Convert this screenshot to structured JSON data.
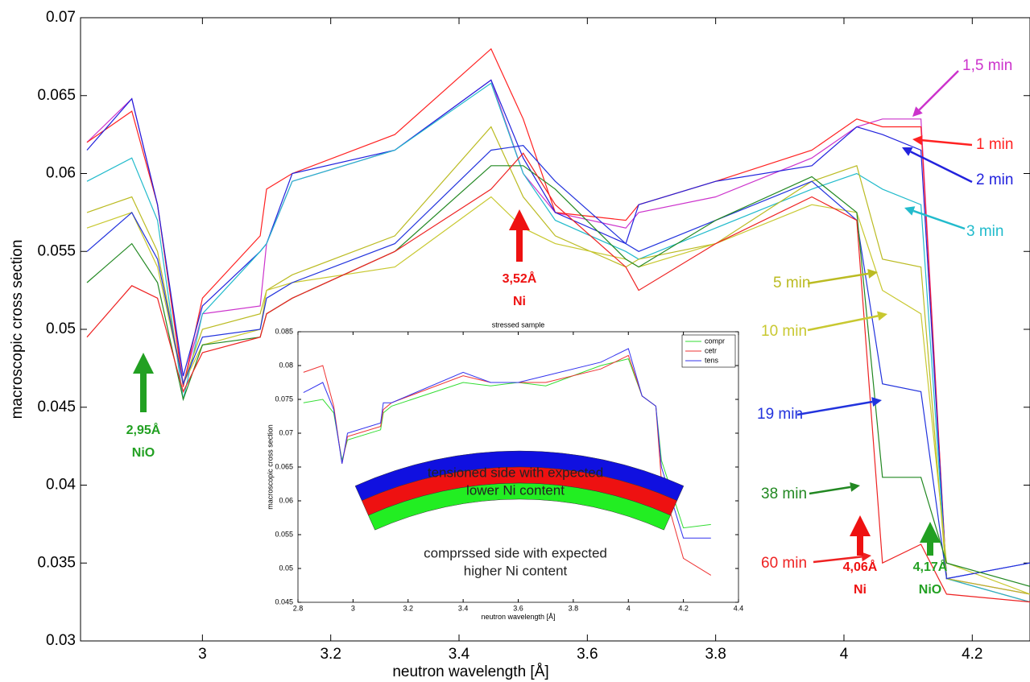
{
  "chart_data": [
    {
      "type": "line",
      "xlabel": "neutron wavelength [Å]",
      "ylabel": "macroscopic cross section",
      "xlim": [
        2.81,
        4.29
      ],
      "ylim": [
        0.03,
        0.07
      ],
      "xticks": [
        3,
        3.2,
        3.4,
        3.6,
        3.8,
        4,
        4.2
      ],
      "yticks": [
        0.03,
        0.035,
        0.04,
        0.045,
        0.05,
        0.055,
        0.06,
        0.065,
        0.07
      ],
      "x": [
        2.82,
        2.89,
        2.93,
        2.97,
        3.0,
        3.09,
        3.1,
        3.14,
        3.3,
        3.45,
        3.5,
        3.55,
        3.66,
        3.68,
        3.8,
        3.95,
        4.02,
        4.06,
        4.12,
        4.16,
        4.29
      ],
      "series": [
        {
          "name": "1,5 min",
          "color": "#cc33cc",
          "values": [
            0.062,
            0.0648,
            0.058,
            0.0465,
            0.051,
            0.0515,
            0.0555,
            0.0595,
            0.0615,
            0.066,
            0.06,
            0.0575,
            0.0565,
            0.0575,
            0.0585,
            0.061,
            0.063,
            0.0635,
            0.0635,
            0.034,
            0.033
          ]
        },
        {
          "name": "1 min",
          "color": "#ff2222",
          "values": [
            0.062,
            0.064,
            0.058,
            0.0463,
            0.052,
            0.056,
            0.059,
            0.06,
            0.0625,
            0.068,
            0.0635,
            0.0575,
            0.057,
            0.058,
            0.0595,
            0.0615,
            0.0635,
            0.063,
            0.063,
            0.034,
            0.0325
          ]
        },
        {
          "name": "2 min",
          "color": "#2222dd",
          "values": [
            0.0615,
            0.0648,
            0.058,
            0.047,
            0.0515,
            0.055,
            0.0555,
            0.06,
            0.0615,
            0.066,
            0.061,
            0.0575,
            0.0555,
            0.058,
            0.0595,
            0.0605,
            0.063,
            0.0625,
            0.0615,
            0.034,
            0.035
          ]
        },
        {
          "name": "3 min",
          "color": "#22bbcc",
          "values": [
            0.0595,
            0.061,
            0.057,
            0.0455,
            0.051,
            0.055,
            0.0555,
            0.0595,
            0.0615,
            0.0658,
            0.06,
            0.057,
            0.055,
            0.0545,
            0.0565,
            0.059,
            0.06,
            0.059,
            0.058,
            0.034,
            0.0325
          ]
        },
        {
          "name": "5 min",
          "color": "#bbbb22",
          "values": [
            0.0575,
            0.0585,
            0.055,
            0.0465,
            0.05,
            0.051,
            0.0525,
            0.0535,
            0.056,
            0.063,
            0.0585,
            0.056,
            0.054,
            0.0545,
            0.0555,
            0.0595,
            0.0605,
            0.0545,
            0.054,
            0.034,
            0.033
          ]
        },
        {
          "name": "10 min",
          "color": "#c8c830",
          "values": [
            0.0565,
            0.0575,
            0.054,
            0.0465,
            0.049,
            0.05,
            0.0525,
            0.053,
            0.054,
            0.0585,
            0.0565,
            0.0555,
            0.0545,
            0.054,
            0.0555,
            0.058,
            0.0575,
            0.0525,
            0.051,
            0.035,
            0.033
          ]
        },
        {
          "name": "19 min",
          "color": "#2233dd",
          "values": [
            0.055,
            0.0575,
            0.0545,
            0.0465,
            0.0495,
            0.05,
            0.052,
            0.053,
            0.0555,
            0.0615,
            0.0618,
            0.0595,
            0.0555,
            0.055,
            0.057,
            0.0595,
            0.057,
            0.0465,
            0.046,
            0.034,
            0.035
          ]
        },
        {
          "name": "38 min",
          "color": "#228822",
          "values": [
            0.053,
            0.0555,
            0.053,
            0.0455,
            0.049,
            0.0495,
            0.051,
            0.052,
            0.055,
            0.0605,
            0.0605,
            0.059,
            0.0545,
            0.054,
            0.057,
            0.0598,
            0.0575,
            0.0405,
            0.0405,
            0.035,
            0.0335
          ]
        },
        {
          "name": "60 min",
          "color": "#ee2222",
          "values": [
            0.0495,
            0.0528,
            0.052,
            0.046,
            0.0485,
            0.0495,
            0.051,
            0.052,
            0.055,
            0.059,
            0.0613,
            0.058,
            0.054,
            0.0525,
            0.0555,
            0.0585,
            0.057,
            0.035,
            0.0362,
            0.033,
            0.0325
          ]
        }
      ],
      "annotations": [
        {
          "lines": [
            "3,52Å",
            "Ni"
          ],
          "color": "#ee1111"
        },
        {
          "lines": [
            "2,95Å",
            "NiO"
          ],
          "color": "#22a022"
        },
        {
          "lines": [
            "4,06Å",
            "Ni"
          ],
          "color": "#ee1111"
        },
        {
          "lines": [
            "4,17Å",
            "NiO"
          ],
          "color": "#22a022"
        }
      ]
    },
    {
      "type": "line",
      "title": "stressed sample",
      "xlabel": "neutron wavelength [Å]",
      "ylabel": "macroscopic cross section",
      "xlim": [
        2.8,
        4.4
      ],
      "ylim": [
        0.045,
        0.085
      ],
      "xticks": [
        2.8,
        3,
        3.2,
        3.4,
        3.6,
        3.8,
        4,
        4.2,
        4.4
      ],
      "yticks": [
        0.045,
        0.05,
        0.055,
        0.06,
        0.065,
        0.07,
        0.075,
        0.08,
        0.085
      ],
      "legend": "upper right",
      "x": [
        2.82,
        2.89,
        2.93,
        2.96,
        2.98,
        3.1,
        3.11,
        3.14,
        3.4,
        3.5,
        3.6,
        3.7,
        3.9,
        4.0,
        4.05,
        4.1,
        4.12,
        4.2,
        4.3
      ],
      "series": [
        {
          "name": "compr",
          "color": "#33dd33",
          "values": [
            0.0745,
            0.075,
            0.073,
            0.066,
            0.069,
            0.0705,
            0.073,
            0.074,
            0.0775,
            0.077,
            0.0775,
            0.077,
            0.08,
            0.081,
            0.0755,
            0.074,
            0.066,
            0.056,
            0.0565
          ]
        },
        {
          "name": "cetr",
          "color": "#ee3333",
          "values": [
            0.079,
            0.08,
            0.074,
            0.0655,
            0.0695,
            0.071,
            0.0735,
            0.0745,
            0.0785,
            0.0775,
            0.0775,
            0.0775,
            0.0795,
            0.0815,
            0.0755,
            0.074,
            0.063,
            0.0515,
            0.049
          ]
        },
        {
          "name": "tens",
          "color": "#3333ee",
          "values": [
            0.076,
            0.0775,
            0.0735,
            0.0655,
            0.07,
            0.0715,
            0.0745,
            0.0745,
            0.079,
            0.0775,
            0.0775,
            0.0785,
            0.0805,
            0.0825,
            0.0755,
            0.074,
            0.065,
            0.0545,
            0.0545
          ]
        }
      ],
      "annotations": [
        {
          "lines": [
            "tensioned side with expected",
            "lower Ni content"
          ]
        },
        {
          "lines": [
            "comprssed side with expected",
            "higher Ni content"
          ]
        }
      ]
    }
  ]
}
